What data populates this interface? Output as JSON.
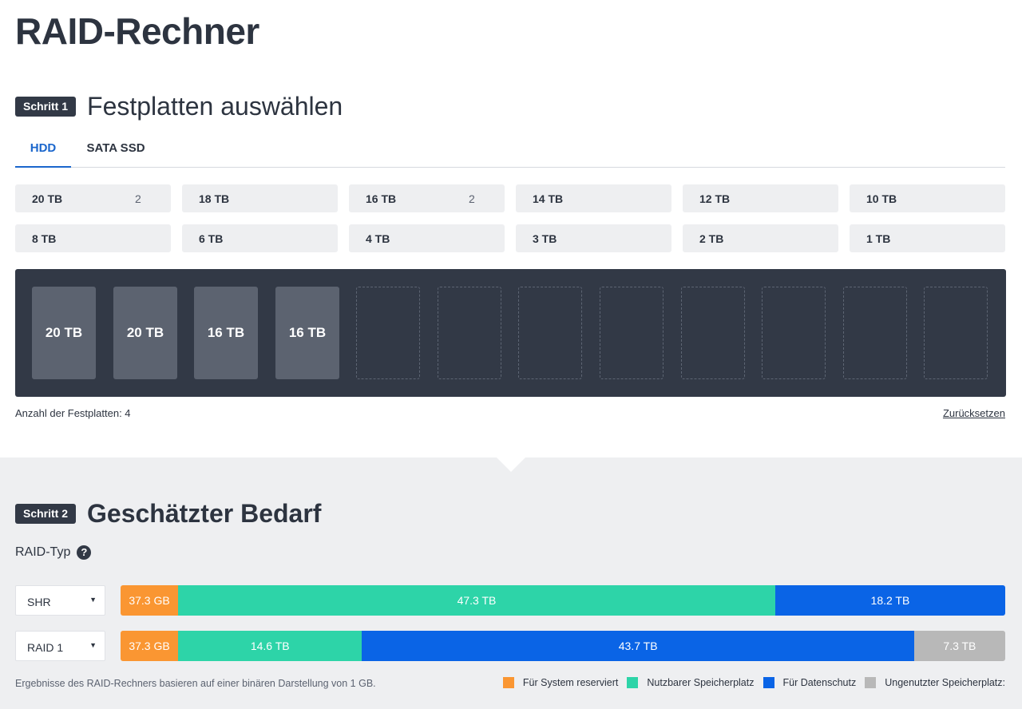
{
  "title": "RAID-Rechner",
  "step1": {
    "badge": "Schritt 1",
    "title": "Festplatten auswählen"
  },
  "tabs": [
    {
      "label": "HDD",
      "active": true
    },
    {
      "label": "SATA SSD",
      "active": false
    }
  ],
  "sizes": [
    {
      "label": "20 TB",
      "count": "2"
    },
    {
      "label": "18 TB",
      "count": ""
    },
    {
      "label": "16 TB",
      "count": "2"
    },
    {
      "label": "14 TB",
      "count": ""
    },
    {
      "label": "12 TB",
      "count": ""
    },
    {
      "label": "10 TB",
      "count": ""
    },
    {
      "label": "8 TB",
      "count": ""
    },
    {
      "label": "6 TB",
      "count": ""
    },
    {
      "label": "4 TB",
      "count": ""
    },
    {
      "label": "3 TB",
      "count": ""
    },
    {
      "label": "2 TB",
      "count": ""
    },
    {
      "label": "1 TB",
      "count": ""
    }
  ],
  "bays": [
    "20 TB",
    "20 TB",
    "16 TB",
    "16 TB",
    "",
    "",
    "",
    "",
    "",
    "",
    "",
    ""
  ],
  "disk_count_text": "Anzahl der Festplatten: 4",
  "reset_label": "Zurücksetzen",
  "step2": {
    "badge": "Schritt 2",
    "title": "Geschätzter Bedarf"
  },
  "raid_type_label": "RAID-Typ",
  "help_glyph": "?",
  "caret_glyph": "▼",
  "colors": {
    "system": "#fa9632",
    "usable": "#2dd4a8",
    "protection": "#0a64e6",
    "unused": "#b8b8b8"
  },
  "raids": [
    {
      "type": "SHR",
      "segments": [
        {
          "kind": "system",
          "label": "37.3 GB",
          "share": 0.065
        },
        {
          "kind": "usable",
          "label": "47.3 TB",
          "share": 0.675
        },
        {
          "kind": "protection",
          "label": "18.2 TB",
          "share": 0.26
        }
      ]
    },
    {
      "type": "RAID 1",
      "segments": [
        {
          "kind": "system",
          "label": "37.3 GB",
          "share": 0.065
        },
        {
          "kind": "usable",
          "label": "14.6 TB",
          "share": 0.208
        },
        {
          "kind": "protection",
          "label": "43.7 TB",
          "share": 0.624
        },
        {
          "kind": "unused",
          "label": "7.3 TB",
          "share": 0.103
        }
      ]
    }
  ],
  "footnote": "Ergebnisse des RAID-Rechners basieren auf einer binären Darstellung von 1 GB.",
  "legend": [
    {
      "kind": "system",
      "label": "Für System reserviert"
    },
    {
      "kind": "usable",
      "label": "Nutzbarer Speicherplatz"
    },
    {
      "kind": "protection",
      "label": "Für Datenschutz"
    },
    {
      "kind": "unused",
      "label": "Ungenutzter Speicherplatz:"
    }
  ]
}
